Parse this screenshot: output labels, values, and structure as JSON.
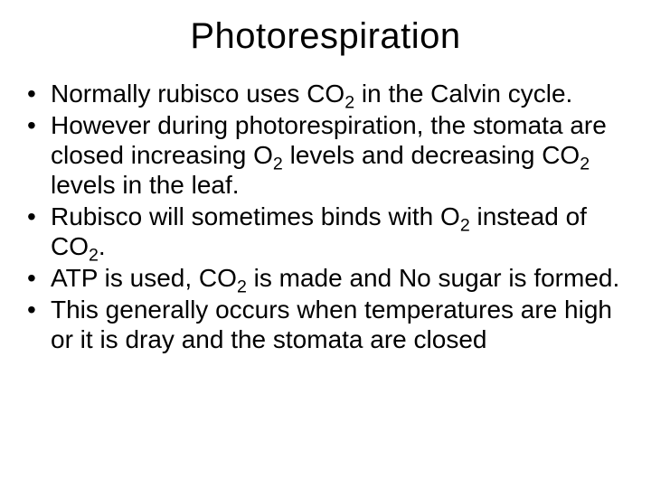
{
  "title": "Photorespiration",
  "title_fontsize": 40,
  "body_fontsize": 28,
  "background_color": "#ffffff",
  "text_color": "#000000",
  "bullets": [
    {
      "segments": [
        {
          "text": "Normally rubisco uses CO"
        },
        {
          "text": "2",
          "sub": true
        },
        {
          "text": " in the Calvin cycle."
        }
      ]
    },
    {
      "segments": [
        {
          "text": "However during photorespiration, the stomata are closed increasing O"
        },
        {
          "text": "2",
          "sub": true
        },
        {
          "text": " levels and decreasing CO"
        },
        {
          "text": "2",
          "sub": true
        },
        {
          "text": " levels in the leaf."
        }
      ]
    },
    {
      "segments": [
        {
          "text": "Rubisco will sometimes binds with O"
        },
        {
          "text": "2",
          "sub": true
        },
        {
          "text": " instead of CO"
        },
        {
          "text": "2",
          "sub": true
        },
        {
          "text": "."
        }
      ]
    },
    {
      "segments": [
        {
          "text": "ATP is used, CO"
        },
        {
          "text": "2",
          "sub": true
        },
        {
          "text": " is made and No sugar is formed."
        }
      ]
    },
    {
      "segments": [
        {
          "text": "This generally occurs when temperatures are high or it is dray and the stomata are closed"
        }
      ]
    }
  ]
}
